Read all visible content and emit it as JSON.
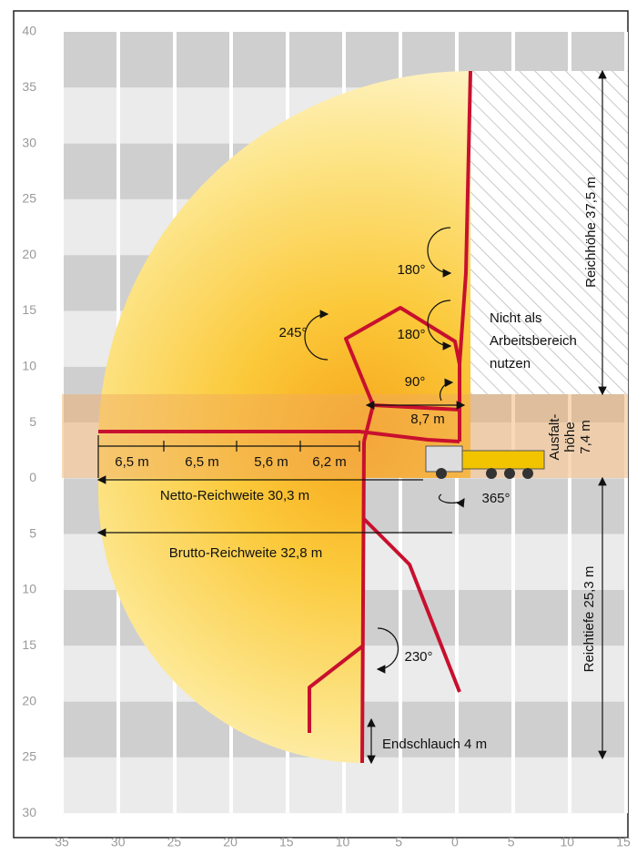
{
  "y_axis_labels": [
    "40",
    "35",
    "30",
    "25",
    "20",
    "15",
    "10",
    "5",
    "0",
    "5",
    "10",
    "15",
    "20",
    "25",
    "30"
  ],
  "x_axis_labels": [
    "35",
    "30",
    "25",
    "20",
    "15",
    "10",
    "5",
    "0",
    "5",
    "10",
    "15"
  ],
  "annotations": {
    "reach_height": "Reichhöhe 37,5 m",
    "reach_depth": "Reichtiefe 25,3 m",
    "outrigger_height": [
      "Ausfalt-",
      "höhe",
      "7,4 m"
    ],
    "segments": [
      "6,5 m",
      "6,5 m",
      "5,6 m",
      "6,2 m"
    ],
    "net_reach": "Netto-Reichweite 30,3 m",
    "gross_reach": "Brutto-Reichweite 32,8 m",
    "inner_reach": "8,7 m",
    "angle_90": "90°",
    "angle_180_top": "180°",
    "angle_180_mid": "180°",
    "angle_245": "245°",
    "angle_365": "365°",
    "angle_230": "230°",
    "end_hose": "Endschlauch 4 m",
    "no_work_zone": [
      "Nicht als",
      "Arbeitsbereich",
      "nutzen"
    ]
  }
}
